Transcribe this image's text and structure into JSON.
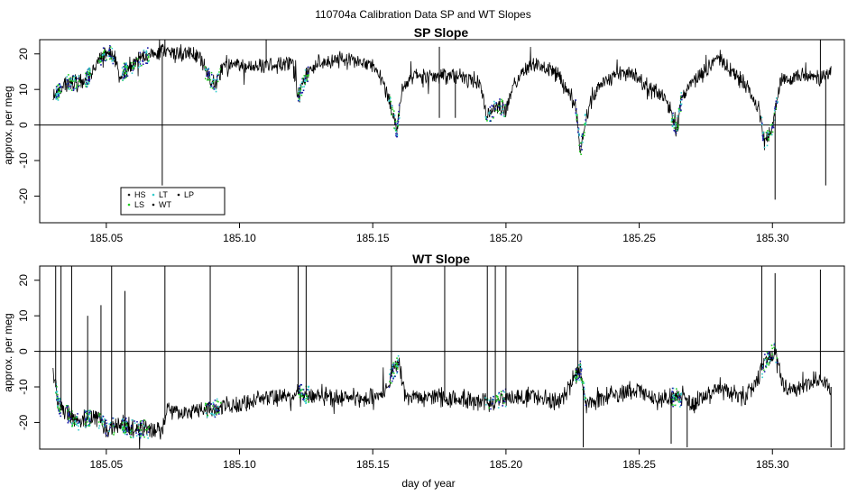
{
  "figure": {
    "main_title": "110704a   Calibration Data SP and WT Slopes",
    "xlabel": "day of year"
  },
  "legend": {
    "entries": [
      {
        "label": "HS",
        "color": "#1f1f1f"
      },
      {
        "label": "LS",
        "color": "#22cc22"
      },
      {
        "label": "LT",
        "color": "#33cccc"
      },
      {
        "label": "WT",
        "color": "#000000"
      },
      {
        "label": "LP",
        "color": "#000000"
      }
    ]
  },
  "chart_data": [
    {
      "type": "line",
      "title": "SP Slope",
      "xlabel": "",
      "ylabel": "approx. per meg",
      "xlim": [
        185.025,
        185.327
      ],
      "ylim": [
        -27.5,
        24
      ],
      "x_ticks": [
        185.05,
        185.1,
        185.15,
        185.2,
        185.25,
        185.3
      ],
      "x_tick_labels": [
        "185.05",
        "185.10",
        "185.15",
        "185.20",
        "185.25",
        "185.30"
      ],
      "y_ticks": [
        -20,
        -10,
        0,
        10,
        20
      ],
      "y_tick_labels": [
        "-20",
        "-10",
        "0",
        "10",
        "20"
      ],
      "hline": 0,
      "legend_position": "bottom-left",
      "baseline": [
        [
          185.03,
          8
        ],
        [
          185.036,
          12
        ],
        [
          185.042,
          12
        ],
        [
          185.046,
          17
        ],
        [
          185.049,
          20
        ],
        [
          185.052,
          20
        ],
        [
          185.055,
          14
        ],
        [
          185.06,
          17
        ],
        [
          185.063,
          19
        ],
        [
          185.067,
          20
        ],
        [
          185.07,
          20
        ],
        [
          185.072,
          21
        ],
        [
          185.075,
          20
        ],
        [
          185.08,
          20
        ],
        [
          185.085,
          19
        ],
        [
          185.088,
          14
        ],
        [
          185.091,
          11
        ],
        [
          185.094,
          17
        ],
        [
          185.1,
          17
        ],
        [
          185.105,
          16
        ],
        [
          185.11,
          17
        ],
        [
          185.116,
          17
        ],
        [
          185.12,
          17
        ],
        [
          185.122,
          8
        ],
        [
          185.125,
          14
        ],
        [
          185.13,
          18
        ],
        [
          185.14,
          18
        ],
        [
          185.15,
          17
        ],
        [
          185.154,
          12
        ],
        [
          185.157,
          5
        ],
        [
          185.159,
          -2
        ],
        [
          185.161,
          10
        ],
        [
          185.165,
          14
        ],
        [
          185.175,
          14
        ],
        [
          185.183,
          14
        ],
        [
          185.19,
          12
        ],
        [
          185.193,
          2
        ],
        [
          185.197,
          6
        ],
        [
          185.2,
          4
        ],
        [
          185.203,
          12
        ],
        [
          185.21,
          18
        ],
        [
          185.22,
          14
        ],
        [
          185.226,
          6
        ],
        [
          185.228,
          -7
        ],
        [
          185.23,
          2
        ],
        [
          185.235,
          12
        ],
        [
          185.245,
          15
        ],
        [
          185.255,
          10
        ],
        [
          185.26,
          8
        ],
        [
          185.262,
          3
        ],
        [
          185.264,
          -2
        ],
        [
          185.266,
          8
        ],
        [
          185.27,
          12
        ],
        [
          185.28,
          19
        ],
        [
          185.29,
          11
        ],
        [
          185.295,
          5
        ],
        [
          185.297,
          -5
        ],
        [
          185.3,
          -1
        ],
        [
          185.303,
          12
        ],
        [
          185.31,
          14
        ],
        [
          185.318,
          13
        ],
        [
          185.322,
          15
        ]
      ],
      "spikes": [
        [
          185.071,
          -17
        ],
        [
          185.072,
          24
        ],
        [
          185.11,
          24
        ],
        [
          185.175,
          22
        ],
        [
          185.175,
          2
        ],
        [
          185.181,
          2
        ],
        [
          185.301,
          -21
        ],
        [
          185.318,
          24
        ],
        [
          185.32,
          -17
        ]
      ],
      "calibration_windows": [
        [
          185.031,
          185.033
        ],
        [
          185.035,
          185.04
        ],
        [
          185.042,
          185.044
        ],
        [
          185.047,
          185.053
        ],
        [
          185.056,
          185.058
        ],
        [
          185.059,
          185.066
        ],
        [
          185.087,
          185.093
        ],
        [
          185.122,
          185.126
        ],
        [
          185.156,
          185.16
        ],
        [
          185.192,
          185.2
        ],
        [
          185.226,
          185.23
        ],
        [
          185.262,
          185.266
        ],
        [
          185.296,
          185.302
        ]
      ],
      "noise": 1.8
    },
    {
      "type": "line",
      "title": "WT Slope",
      "xlabel": "day of year",
      "ylabel": "approx. per meg",
      "xlim": [
        185.025,
        185.327
      ],
      "ylim": [
        -27.5,
        24
      ],
      "x_ticks": [
        185.05,
        185.1,
        185.15,
        185.2,
        185.25,
        185.3
      ],
      "x_tick_labels": [
        "185.05",
        "185.10",
        "185.15",
        "185.20",
        "185.25",
        "185.30"
      ],
      "y_ticks": [
        -20,
        -10,
        0,
        10,
        20
      ],
      "y_tick_labels": [
        "-20",
        "-10",
        "0",
        "10",
        "20"
      ],
      "hline": 0,
      "baseline": [
        [
          185.03,
          -5
        ],
        [
          185.032,
          -15
        ],
        [
          185.036,
          -18
        ],
        [
          185.04,
          -20
        ],
        [
          185.046,
          -18
        ],
        [
          185.05,
          -22
        ],
        [
          185.055,
          -20
        ],
        [
          185.06,
          -22
        ],
        [
          185.066,
          -22
        ],
        [
          185.071,
          -22
        ],
        [
          185.073,
          -16
        ],
        [
          185.08,
          -17
        ],
        [
          185.09,
          -16
        ],
        [
          185.1,
          -15
        ],
        [
          185.11,
          -13
        ],
        [
          185.12,
          -12
        ],
        [
          185.124,
          -12
        ],
        [
          185.13,
          -13
        ],
        [
          185.14,
          -13
        ],
        [
          185.15,
          -13
        ],
        [
          185.155,
          -11
        ],
        [
          185.158,
          -5
        ],
        [
          185.16,
          -3
        ],
        [
          185.162,
          -13
        ],
        [
          185.17,
          -13
        ],
        [
          185.18,
          -13
        ],
        [
          185.19,
          -14
        ],
        [
          185.195,
          -15
        ],
        [
          185.2,
          -13
        ],
        [
          185.21,
          -13
        ],
        [
          185.22,
          -14
        ],
        [
          185.225,
          -9
        ],
        [
          185.228,
          -5
        ],
        [
          185.23,
          -15
        ],
        [
          185.24,
          -12
        ],
        [
          185.25,
          -11
        ],
        [
          185.258,
          -14
        ],
        [
          185.262,
          -13
        ],
        [
          185.266,
          -13
        ],
        [
          185.27,
          -15
        ],
        [
          185.28,
          -10
        ],
        [
          185.29,
          -13
        ],
        [
          185.295,
          -7
        ],
        [
          185.298,
          -2
        ],
        [
          185.301,
          0
        ],
        [
          185.304,
          -10
        ],
        [
          185.31,
          -10
        ],
        [
          185.318,
          -8
        ],
        [
          185.322,
          -10
        ]
      ],
      "spikes": [
        [
          185.031,
          24
        ],
        [
          185.033,
          24
        ],
        [
          185.037,
          24
        ],
        [
          185.043,
          10
        ],
        [
          185.048,
          13
        ],
        [
          185.052,
          24
        ],
        [
          185.057,
          17
        ],
        [
          185.072,
          24
        ],
        [
          185.089,
          24
        ],
        [
          185.122,
          24
        ],
        [
          185.125,
          24
        ],
        [
          185.157,
          24
        ],
        [
          185.177,
          24
        ],
        [
          185.193,
          24
        ],
        [
          185.196,
          24
        ],
        [
          185.2,
          24
        ],
        [
          185.227,
          24
        ],
        [
          185.229,
          -27
        ],
        [
          185.262,
          -26
        ],
        [
          185.268,
          -27
        ],
        [
          185.296,
          24
        ],
        [
          185.301,
          22
        ],
        [
          185.318,
          23
        ],
        [
          185.322,
          -27
        ]
      ],
      "calibration_windows": [
        [
          185.031,
          185.033
        ],
        [
          185.035,
          185.04
        ],
        [
          185.042,
          185.044
        ],
        [
          185.047,
          185.053
        ],
        [
          185.056,
          185.058
        ],
        [
          185.059,
          185.066
        ],
        [
          185.087,
          185.093
        ],
        [
          185.122,
          185.126
        ],
        [
          185.156,
          185.16
        ],
        [
          185.192,
          185.2
        ],
        [
          185.226,
          185.23
        ],
        [
          185.262,
          185.266
        ],
        [
          185.296,
          185.302
        ]
      ],
      "noise": 2.0
    }
  ]
}
